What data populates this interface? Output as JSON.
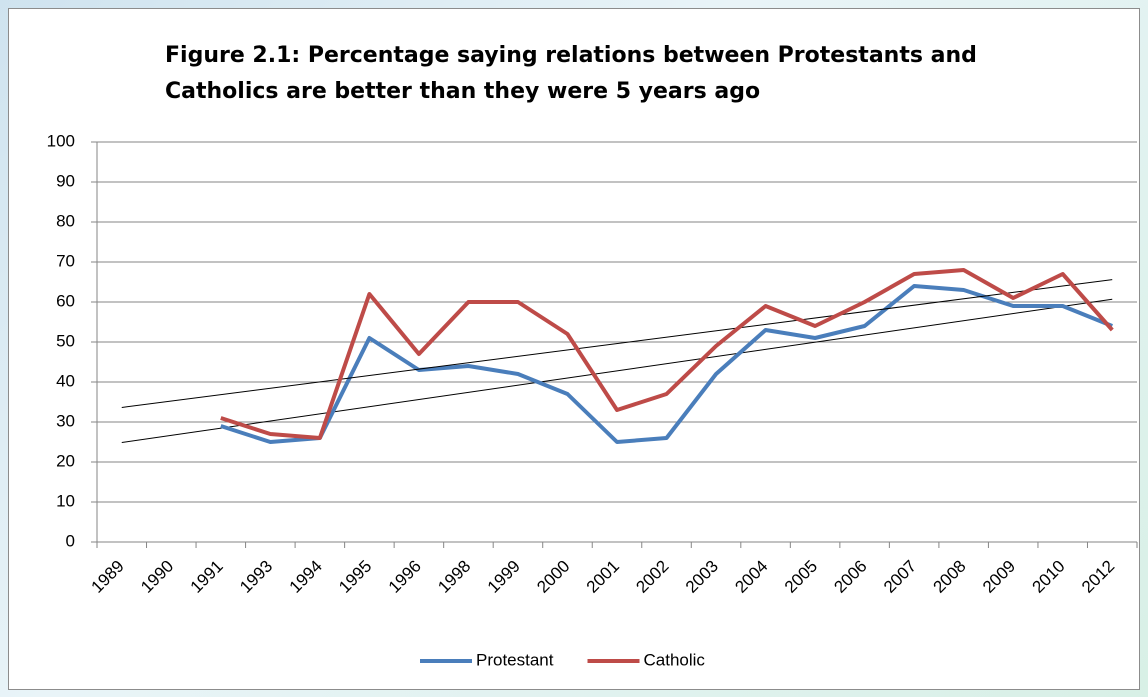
{
  "chart_data": {
    "type": "line",
    "title": "Figure 2.1: Percentage saying relations between Protestants and Catholics are better than they were 5 years ago",
    "categories": [
      "1989",
      "1990",
      "1991",
      "1993",
      "1994",
      "1995",
      "1996",
      "1998",
      "1999",
      "2000",
      "2001",
      "2002",
      "2003",
      "2004",
      "2005",
      "2006",
      "2007",
      "2008",
      "2009",
      "2010",
      "2012"
    ],
    "series": [
      {
        "name": "Protestant",
        "color": "#4a7ebb",
        "values": [
          null,
          null,
          29,
          25,
          26,
          51,
          43,
          44,
          42,
          37,
          25,
          26,
          42,
          53,
          51,
          54,
          64,
          63,
          59,
          59,
          54
        ]
      },
      {
        "name": "Catholic",
        "color": "#be4b48",
        "values": [
          null,
          null,
          31,
          27,
          26,
          62,
          47,
          60,
          60,
          52,
          33,
          37,
          49,
          59,
          54,
          60,
          67,
          68,
          61,
          67,
          53
        ]
      }
    ],
    "ylim": [
      0,
      100
    ],
    "yticks": [
      0,
      10,
      20,
      30,
      40,
      50,
      60,
      70,
      80,
      90,
      100
    ],
    "grid": true,
    "trendline": true,
    "legend": "bottom"
  }
}
